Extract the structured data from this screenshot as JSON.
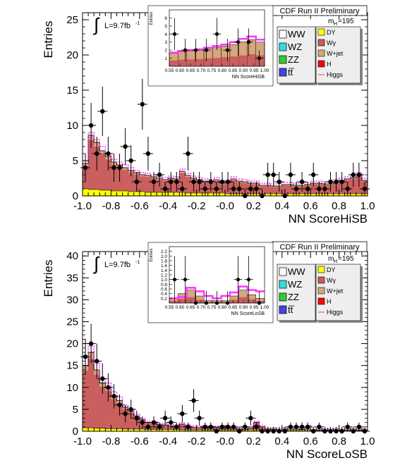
{
  "chart_data": [
    {
      "type": "bar",
      "title": "CDF Run II Preliminary",
      "xlabel": "NN ScoreHiSB",
      "ylabel": "Entries",
      "xlim": [
        -1.0,
        1.0
      ],
      "ylim": [
        0,
        26
      ],
      "xticks": [
        "-1.0",
        "-0.8",
        "-0.6",
        "-0.4",
        "-0.2",
        "-0.0",
        "0.2",
        "0.4",
        "0.6",
        "0.8",
        "1.0"
      ],
      "yticks": [
        "0",
        "5",
        "10",
        "15",
        "20",
        "25"
      ],
      "lumi": "L=9.7fb",
      "lumi_sup": "-1",
      "mass_label": "m",
      "mass_sub": "H",
      "mass_value": "=195",
      "bin_width": 0.04,
      "bin_start": -1.0,
      "stack_total": [
        4.6,
        8.6,
        7.6,
        6.4,
        5.6,
        4.8,
        4.4,
        4.0,
        3.6,
        3.3,
        3.0,
        2.9,
        2.7,
        2.5,
        2.3,
        2.5,
        2.4,
        3.5,
        2.9,
        2.5,
        2.3,
        2.1,
        2.0,
        2.3,
        1.8,
        1.9,
        2.4,
        2.1,
        2.0,
        1.8,
        1.8,
        1.5,
        1.5,
        1.4,
        1.4,
        1.6,
        1.6,
        1.5,
        1.5,
        1.6,
        1.8,
        1.8,
        1.7,
        1.7,
        2.0,
        2.2,
        2.4,
        2.6,
        3.0,
        2.2
      ],
      "yellow_component": [
        1.0,
        0.9,
        0.9,
        0.8,
        0.8,
        0.7,
        0.7,
        0.7,
        0.6,
        0.6,
        0.6,
        0.5,
        0.5,
        0.5,
        0.5,
        0.5,
        0.5,
        0.5,
        0.4,
        0.4,
        0.4,
        0.4,
        0.4,
        0.4,
        0.4,
        0.3,
        0.3,
        0.3,
        0.3,
        0.3,
        0.3,
        0.3,
        0.3,
        0.3,
        0.3,
        0.3,
        0.3,
        0.3,
        0.3,
        0.3,
        0.3,
        0.3,
        0.3,
        0.3,
        0.3,
        0.3,
        0.3,
        0.3,
        0.3,
        0.3
      ],
      "higgs_curve": [
        5.0,
        9.0,
        8.0,
        7.0,
        6.0,
        5.2,
        4.8,
        4.4,
        4.0,
        3.6,
        3.3,
        3.2,
        3.0,
        2.8,
        2.6,
        2.8,
        2.7,
        3.8,
        3.2,
        2.8,
        2.6,
        2.4,
        2.3,
        2.6,
        2.1,
        2.2,
        2.7,
        2.4,
        2.3,
        2.1,
        2.1,
        1.8,
        1.8,
        1.7,
        1.7,
        1.9,
        1.9,
        1.8,
        1.8,
        1.9,
        2.1,
        2.1,
        2.0,
        2.0,
        2.3,
        2.5,
        2.7,
        2.9,
        3.3,
        2.5
      ],
      "data_points": [
        {
          "x": -0.98,
          "y": 4,
          "err": 2
        },
        {
          "x": -0.94,
          "y": 10,
          "err": 3.2
        },
        {
          "x": -0.9,
          "y": 6,
          "err": 2.4
        },
        {
          "x": -0.86,
          "y": 12,
          "err": 3.5
        },
        {
          "x": -0.82,
          "y": 6,
          "err": 2.4
        },
        {
          "x": -0.78,
          "y": 4,
          "err": 2
        },
        {
          "x": -0.74,
          "y": 4,
          "err": 2
        },
        {
          "x": -0.7,
          "y": 7,
          "err": 2.6
        },
        {
          "x": -0.66,
          "y": 5,
          "err": 2.2
        },
        {
          "x": -0.62,
          "y": 2,
          "err": 1.4
        },
        {
          "x": -0.58,
          "y": 13,
          "err": 3.6
        },
        {
          "x": -0.54,
          "y": 6,
          "err": 2.4
        },
        {
          "x": -0.5,
          "y": 2,
          "err": 1.4
        },
        {
          "x": -0.46,
          "y": 3,
          "err": 1.7
        },
        {
          "x": -0.42,
          "y": 1,
          "err": 1
        },
        {
          "x": -0.38,
          "y": 2,
          "err": 1.4
        },
        {
          "x": -0.34,
          "y": 2,
          "err": 1.4
        },
        {
          "x": -0.3,
          "y": 1,
          "err": 1
        },
        {
          "x": -0.26,
          "y": 6,
          "err": 2.4
        },
        {
          "x": -0.22,
          "y": 2,
          "err": 1.4
        },
        {
          "x": -0.18,
          "y": 2,
          "err": 1.4
        },
        {
          "x": -0.14,
          "y": 1,
          "err": 1
        },
        {
          "x": -0.1,
          "y": 2,
          "err": 1.4
        },
        {
          "x": -0.06,
          "y": 1,
          "err": 1
        },
        {
          "x": -0.02,
          "y": 2,
          "err": 1.4
        },
        {
          "x": 0.02,
          "y": 2,
          "err": 1.4
        },
        {
          "x": 0.06,
          "y": 1,
          "err": 1
        },
        {
          "x": 0.1,
          "y": 1,
          "err": 1
        },
        {
          "x": 0.14,
          "y": 0,
          "err": 1
        },
        {
          "x": 0.18,
          "y": 1,
          "err": 1
        },
        {
          "x": 0.22,
          "y": 1,
          "err": 1
        },
        {
          "x": 0.26,
          "y": 0,
          "err": 1
        },
        {
          "x": 0.3,
          "y": 3,
          "err": 1.7
        },
        {
          "x": 0.34,
          "y": 3,
          "err": 1.7
        },
        {
          "x": 0.38,
          "y": 2,
          "err": 1.4
        },
        {
          "x": 0.42,
          "y": 0,
          "err": 1
        },
        {
          "x": 0.46,
          "y": 3,
          "err": 1.7
        },
        {
          "x": 0.5,
          "y": 1,
          "err": 1
        },
        {
          "x": 0.54,
          "y": 2,
          "err": 1.4
        },
        {
          "x": 0.58,
          "y": 1,
          "err": 1
        },
        {
          "x": 0.62,
          "y": 3,
          "err": 1.7
        },
        {
          "x": 0.66,
          "y": 1,
          "err": 1
        },
        {
          "x": 0.7,
          "y": 1,
          "err": 1
        },
        {
          "x": 0.74,
          "y": 2,
          "err": 1.4
        },
        {
          "x": 0.78,
          "y": 2,
          "err": 1.4
        },
        {
          "x": 0.82,
          "y": 2,
          "err": 1.4
        },
        {
          "x": 0.86,
          "y": 1,
          "err": 1
        },
        {
          "x": 0.9,
          "y": 3,
          "err": 1.7
        },
        {
          "x": 0.94,
          "y": 3,
          "err": 1.7
        },
        {
          "x": 0.98,
          "y": 1,
          "err": 1
        }
      ],
      "inset": {
        "xlabel": "NN ScoreHiSB",
        "ylabel": "Entries",
        "xlim": [
          0.55,
          1.0
        ],
        "ylim": [
          0,
          7
        ],
        "xticks": [
          "0.55",
          "0.60",
          "0.65",
          "0.70",
          "0.75",
          "0.80",
          "0.85",
          "0.90",
          "0.95",
          "1.00"
        ],
        "yticks": [
          "1",
          "2",
          "3",
          "4",
          "5",
          "6"
        ],
        "stack_total": [
          1.6,
          1.8,
          1.9,
          2.0,
          2.2,
          2.3,
          2.5,
          2.7,
          3.0,
          3.3,
          3.0
        ],
        "higgs_curve": [
          1.7,
          1.9,
          2.0,
          2.1,
          2.3,
          2.5,
          2.7,
          3.0,
          3.4,
          3.7,
          3.3
        ],
        "data_points": [
          {
            "x": 0.575,
            "y": 4,
            "err": 2
          },
          {
            "x": 0.625,
            "y": 2,
            "err": 1.4
          },
          {
            "x": 0.675,
            "y": 2,
            "err": 1.4
          },
          {
            "x": 0.725,
            "y": 2,
            "err": 1.4
          },
          {
            "x": 0.775,
            "y": 4,
            "err": 2
          },
          {
            "x": 0.825,
            "y": 2,
            "err": 1.4
          },
          {
            "x": 0.875,
            "y": 3,
            "err": 1.7
          },
          {
            "x": 0.925,
            "y": 3,
            "err": 1.7
          },
          {
            "x": 0.975,
            "y": 1,
            "err": 1
          }
        ]
      }
    },
    {
      "type": "bar",
      "title": "CDF Run II Preliminary",
      "xlabel": "NN ScoreLoSB",
      "ylabel": "Entries",
      "xlim": [
        -1.0,
        1.0
      ],
      "ylim": [
        0,
        41
      ],
      "xticks": [
        "-1.0",
        "-0.8",
        "-0.6",
        "-0.4",
        "-0.2",
        "-0.0",
        "0.2",
        "0.4",
        "0.6",
        "0.8",
        "1.0"
      ],
      "yticks": [
        "0",
        "5",
        "10",
        "15",
        "20",
        "25",
        "30",
        "35",
        "40"
      ],
      "lumi": "L=9.7fb",
      "lumi_sup": "-1",
      "mass_label": "m",
      "mass_sub": "H",
      "mass_value": "=195",
      "bin_width": 0.04,
      "bin_start": -1.0,
      "stack_total": [
        15,
        18,
        14,
        11,
        10,
        8,
        7,
        5.5,
        4.5,
        3.5,
        2.6,
        2.0,
        2.0,
        1.5,
        1.4,
        1.2,
        1.2,
        1.6,
        1.2,
        0.9,
        0.8,
        1.0,
        0.8,
        0.9,
        0.6,
        0.7,
        0.6,
        0.5,
        0.4,
        0.7,
        2.0,
        1.0,
        0.5,
        0.5,
        0.3,
        0.5,
        0.3,
        0.3,
        0.4,
        0.3,
        0.2,
        0.2,
        0.2,
        0.3,
        0.3,
        0.2,
        0.2,
        0.3,
        0.2,
        0.2
      ],
      "yellow_component": [
        0.8,
        0.8,
        0.7,
        0.7,
        0.6,
        0.6,
        0.6,
        0.5,
        0.5,
        0.5,
        0.5,
        0.4,
        0.4,
        0.4,
        0.4,
        0.4,
        0.4,
        0.3,
        0.3,
        0.3,
        0.3,
        0.3,
        0.3,
        0.3,
        0.3,
        0.3,
        0.3,
        0.3,
        0.3,
        0.3,
        0.3,
        0.3,
        0.3,
        0.3,
        0.3,
        0.3,
        0.3,
        0.3,
        0.3,
        0.3,
        0.3,
        0.3,
        0.3,
        0.3,
        0.3,
        0.3,
        0.3,
        0.3,
        0.3,
        0.3
      ],
      "higgs_curve": [
        17,
        19.5,
        15.5,
        12,
        11,
        9,
        7.8,
        6,
        5,
        3.9,
        2.9,
        2.3,
        2.3,
        1.8,
        1.7,
        1.5,
        1.5,
        1.9,
        1.5,
        1.2,
        1.1,
        1.3,
        1.1,
        1.2,
        0.9,
        1.0,
        0.9,
        0.8,
        0.7,
        1.0,
        2.3,
        1.3,
        0.8,
        0.8,
        0.6,
        0.8,
        0.6,
        0.6,
        0.7,
        0.6,
        0.5,
        0.5,
        0.5,
        0.6,
        0.6,
        0.5,
        0.5,
        0.6,
        0.5,
        0.5
      ],
      "data_points": [
        {
          "x": -0.98,
          "y": 17,
          "err": 4.1
        },
        {
          "x": -0.94,
          "y": 20,
          "err": 4.5
        },
        {
          "x": -0.9,
          "y": 16,
          "err": 4
        },
        {
          "x": -0.86,
          "y": 12,
          "err": 3.5
        },
        {
          "x": -0.82,
          "y": 10,
          "err": 3.2
        },
        {
          "x": -0.78,
          "y": 8,
          "err": 2.8
        },
        {
          "x": -0.74,
          "y": 6,
          "err": 2.4
        },
        {
          "x": -0.7,
          "y": 4,
          "err": 2
        },
        {
          "x": -0.66,
          "y": 5,
          "err": 2.2
        },
        {
          "x": -0.62,
          "y": 3,
          "err": 1.7
        },
        {
          "x": -0.58,
          "y": 2,
          "err": 1.4
        },
        {
          "x": -0.54,
          "y": 1,
          "err": 1
        },
        {
          "x": -0.5,
          "y": 2,
          "err": 1.4
        },
        {
          "x": -0.46,
          "y": 1,
          "err": 1
        },
        {
          "x": -0.42,
          "y": 3,
          "err": 1.7
        },
        {
          "x": -0.38,
          "y": 2,
          "err": 1.4
        },
        {
          "x": -0.34,
          "y": 1,
          "err": 1
        },
        {
          "x": -0.3,
          "y": 4,
          "err": 2
        },
        {
          "x": -0.26,
          "y": 1,
          "err": 1
        },
        {
          "x": -0.22,
          "y": 7,
          "err": 2.6
        },
        {
          "x": -0.18,
          "y": 3,
          "err": 1.7
        },
        {
          "x": -0.14,
          "y": 1,
          "err": 1
        },
        {
          "x": -0.1,
          "y": 1,
          "err": 1
        },
        {
          "x": -0.06,
          "y": 0,
          "err": 1
        },
        {
          "x": -0.02,
          "y": 1,
          "err": 1
        },
        {
          "x": 0.02,
          "y": 1,
          "err": 1
        },
        {
          "x": 0.06,
          "y": 1,
          "err": 1
        },
        {
          "x": 0.1,
          "y": 0,
          "err": 1
        },
        {
          "x": 0.14,
          "y": 1,
          "err": 1
        },
        {
          "x": 0.18,
          "y": 3,
          "err": 1.7
        },
        {
          "x": 0.22,
          "y": 1,
          "err": 1
        },
        {
          "x": 0.26,
          "y": 0,
          "err": 1
        },
        {
          "x": 0.3,
          "y": 0,
          "err": 1
        },
        {
          "x": 0.34,
          "y": 0,
          "err": 1
        },
        {
          "x": 0.38,
          "y": 0,
          "err": 1
        },
        {
          "x": 0.42,
          "y": 0,
          "err": 1
        },
        {
          "x": 0.46,
          "y": 1,
          "err": 1
        },
        {
          "x": 0.5,
          "y": 1,
          "err": 1
        },
        {
          "x": 0.54,
          "y": 1,
          "err": 1
        },
        {
          "x": 0.58,
          "y": 1,
          "err": 1
        },
        {
          "x": 0.62,
          "y": 0,
          "err": 1
        },
        {
          "x": 0.66,
          "y": 1,
          "err": 1
        },
        {
          "x": 0.7,
          "y": 0,
          "err": 1
        },
        {
          "x": 0.74,
          "y": 0,
          "err": 1
        },
        {
          "x": 0.78,
          "y": 0,
          "err": 1
        },
        {
          "x": 0.82,
          "y": 0,
          "err": 1
        },
        {
          "x": 0.86,
          "y": 1,
          "err": 1
        },
        {
          "x": 0.9,
          "y": 0,
          "err": 1
        },
        {
          "x": 0.94,
          "y": 1,
          "err": 1
        },
        {
          "x": 0.98,
          "y": 0,
          "err": 1
        }
      ],
      "inset": {
        "xlabel": "NN ScoreLoSB",
        "ylabel": "Entries",
        "xlim": [
          0.55,
          1.0
        ],
        "ylim": [
          0,
          2.4
        ],
        "xticks": [
          "0.55",
          "0.60",
          "0.65",
          "0.70",
          "0.75",
          "0.80",
          "0.85",
          "0.90",
          "0.95",
          "1.00"
        ],
        "yticks": [
          "0.2",
          "0.4",
          "0.6",
          "0.8",
          "1.0",
          "1.2",
          "1.4",
          "1.6",
          "1.8",
          "2.0",
          "2.2"
        ],
        "stack_total": [
          0.2,
          0.4,
          0.55,
          0.3,
          0.1,
          0.1,
          0.1,
          0.3,
          0.55,
          0.35,
          0.2
        ],
        "higgs_curve": [
          0.2,
          0.25,
          0.65,
          0.5,
          0.3,
          0.2,
          0.3,
          0.45,
          0.7,
          0.55,
          0.5
        ],
        "data_points": [
          {
            "x": 0.575,
            "y": 1,
            "err": 1
          },
          {
            "x": 0.625,
            "y": 1,
            "err": 1
          },
          {
            "x": 0.675,
            "y": 0,
            "err": 0.5
          },
          {
            "x": 0.725,
            "y": 0,
            "err": 0.5
          },
          {
            "x": 0.775,
            "y": 0,
            "err": 0.5
          },
          {
            "x": 0.825,
            "y": 0,
            "err": 0.5
          },
          {
            "x": 0.875,
            "y": 1,
            "err": 1
          },
          {
            "x": 0.925,
            "y": 1,
            "err": 1
          },
          {
            "x": 0.975,
            "y": 0,
            "err": 0.5
          }
        ]
      }
    }
  ],
  "legend": {
    "left_items": [
      {
        "label": "WW",
        "color": "#ffffff"
      },
      {
        "label": "WZ",
        "color": "#33dddd"
      },
      {
        "label": "ZZ",
        "color": "#33cc33"
      },
      {
        "label": "tt̅",
        "color": "#4444dd"
      }
    ],
    "right_items": [
      {
        "label": "DY",
        "color": "#ffff00"
      },
      {
        "label": "Wγ",
        "color": "#cc5a5a"
      },
      {
        "label": "W+jet",
        "color": "#d8a87a"
      },
      {
        "label": "H",
        "color": "#ff0000"
      },
      {
        "label": "Higgs",
        "color": "#ff66ff"
      }
    ]
  },
  "colors": {
    "wgamma": "#c95f5f",
    "dy": "#ffff00",
    "wjet": "#d6a67c",
    "higgs": "#ff33ff",
    "data": "#000000"
  }
}
